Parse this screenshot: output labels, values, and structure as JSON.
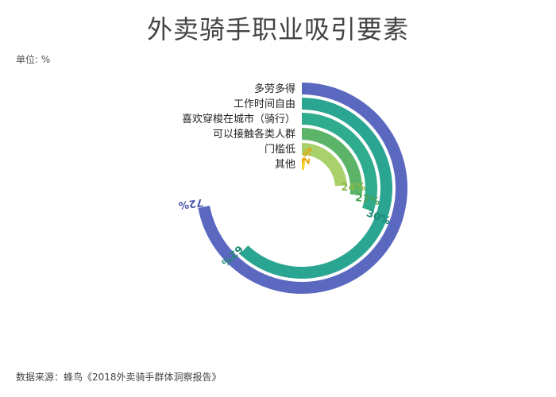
{
  "title": "外卖骑手职业吸引要素",
  "unit": "单位: %",
  "source": "数据来源：蜂鸟《2018外卖骑手群体洞察报告》",
  "chart_data": {
    "type": "radial-bar",
    "categories": [
      "多劳多得",
      "工作时间自由",
      "喜欢穿梭在城市（骑行）",
      "可以接触各类人群",
      "门槛低",
      "其他"
    ],
    "values": [
      72,
      62,
      30,
      27,
      24,
      2
    ],
    "value_labels": [
      "72%",
      "62%",
      "30%",
      "27%",
      "24%",
      "2%"
    ],
    "colors": [
      "#5b68c0",
      "#29a592",
      "#2fab8e",
      "#5bb467",
      "#a9d16b",
      "#f5d33c"
    ],
    "label_colors": [
      "#4b57ae",
      "#208a78",
      "#208a78",
      "#4aa155",
      "#8ab84a",
      "#e6a300"
    ],
    "max": 100,
    "unit": "%"
  }
}
